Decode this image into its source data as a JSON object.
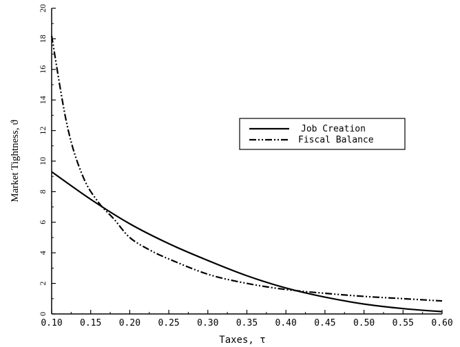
{
  "chart_data": {
    "type": "line",
    "title": "",
    "xlabel": "Taxes,  τ",
    "ylabel": "Market Tightness, ϑ",
    "xlim": [
      0.1,
      0.6
    ],
    "ylim": [
      0,
      20
    ],
    "x_ticks": [
      0.1,
      0.15,
      0.2,
      0.25,
      0.3,
      0.35,
      0.4,
      0.45,
      0.5,
      0.55,
      0.6
    ],
    "x_tick_labels": [
      "0.10",
      "0.15",
      "0.20",
      "0.25",
      "0.30",
      "0.35",
      "0.40",
      "0.45",
      "0.50",
      "0.55",
      "0.60"
    ],
    "y_ticks": [
      0,
      2,
      4,
      6,
      8,
      10,
      12,
      14,
      16,
      18,
      20
    ],
    "y_tick_labels": [
      "0",
      "2",
      "4",
      "6",
      "8",
      "10",
      "12",
      "14",
      "16",
      "18",
      "20"
    ],
    "grid": false,
    "legend_position": "center-right",
    "series": [
      {
        "name": "Job Creation",
        "style": "solid",
        "x": [
          0.1,
          0.15,
          0.2,
          0.25,
          0.3,
          0.35,
          0.4,
          0.45,
          0.5,
          0.55,
          0.6
        ],
        "y": [
          9.3,
          7.5,
          5.9,
          4.6,
          3.5,
          2.5,
          1.7,
          1.1,
          0.65,
          0.35,
          0.15
        ]
      },
      {
        "name": "Fiscal Balance",
        "style": "dash-dot-dot",
        "x": [
          0.1,
          0.12,
          0.14,
          0.16,
          0.18,
          0.2,
          0.225,
          0.25,
          0.3,
          0.35,
          0.4,
          0.45,
          0.5,
          0.55,
          0.6
        ],
        "y": [
          18.2,
          12.3,
          9.0,
          7.3,
          6.2,
          5.0,
          4.2,
          3.6,
          2.6,
          2.0,
          1.6,
          1.35,
          1.15,
          1.0,
          0.85
        ]
      }
    ]
  }
}
